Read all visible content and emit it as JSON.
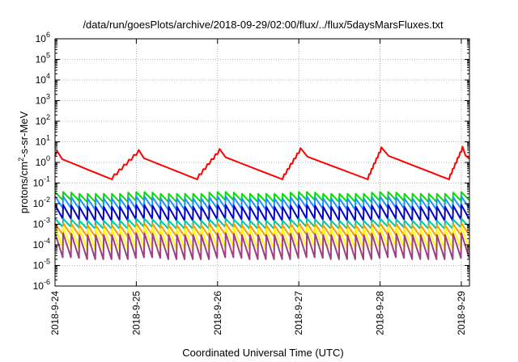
{
  "chart_data": {
    "type": "line",
    "title": "/data/run/goesPlots/archive/2018-09-29/02:00/flux/../flux/5daysMarsFluxes.txt",
    "xlabel": "Coordinated Universal Time (UTC)",
    "ylabel": {
      "prefix": "protons/cm",
      "sup": "2",
      "suffix": "-s-sr-MeV"
    },
    "yscale": "log",
    "ylim_exp": [
      -6,
      6
    ],
    "ytick_base": "10",
    "ytick_exps": [
      "-6",
      "-5",
      "-4",
      "-3",
      "-2",
      "-1",
      "0",
      "1",
      "2",
      "3",
      "4",
      "5",
      "6"
    ],
    "xlim_days": [
      0,
      5.1
    ],
    "xticks": [
      {
        "day": 0,
        "label": "2018-9-24"
      },
      {
        "day": 1,
        "label": "2018-9-25"
      },
      {
        "day": 2,
        "label": "2018-9-26"
      },
      {
        "day": 3,
        "label": "2018-9-27"
      },
      {
        "day": 4,
        "label": "2018-9-28"
      },
      {
        "day": 5,
        "label": "2018-9-29"
      }
    ],
    "grid": true,
    "series": [
      {
        "color": "#ff0000",
        "kind": "big",
        "min": 0.15,
        "max": 2.5
      },
      {
        "color": "#00e000",
        "kind": "saw",
        "hi": 0.03,
        "lo": 0.012
      },
      {
        "color": "#1e90ff",
        "kind": "saw",
        "hi": 0.018,
        "lo": 0.005
      },
      {
        "color": "#0000cc",
        "kind": "saw",
        "hi": 0.007,
        "lo": 0.0015
      },
      {
        "color": "#00c8a0",
        "kind": "saw",
        "hi": 0.0015,
        "lo": 0.0006
      },
      {
        "color": "#ff9900",
        "kind": "saw",
        "hi": 0.0009,
        "lo": 0.00025
      },
      {
        "color": "#ffff00",
        "kind": "saw",
        "hi": 0.0006,
        "lo": 6e-05
      },
      {
        "color": "#a04080",
        "kind": "saw",
        "hi": 0.0003,
        "lo": 2e-05
      }
    ]
  }
}
